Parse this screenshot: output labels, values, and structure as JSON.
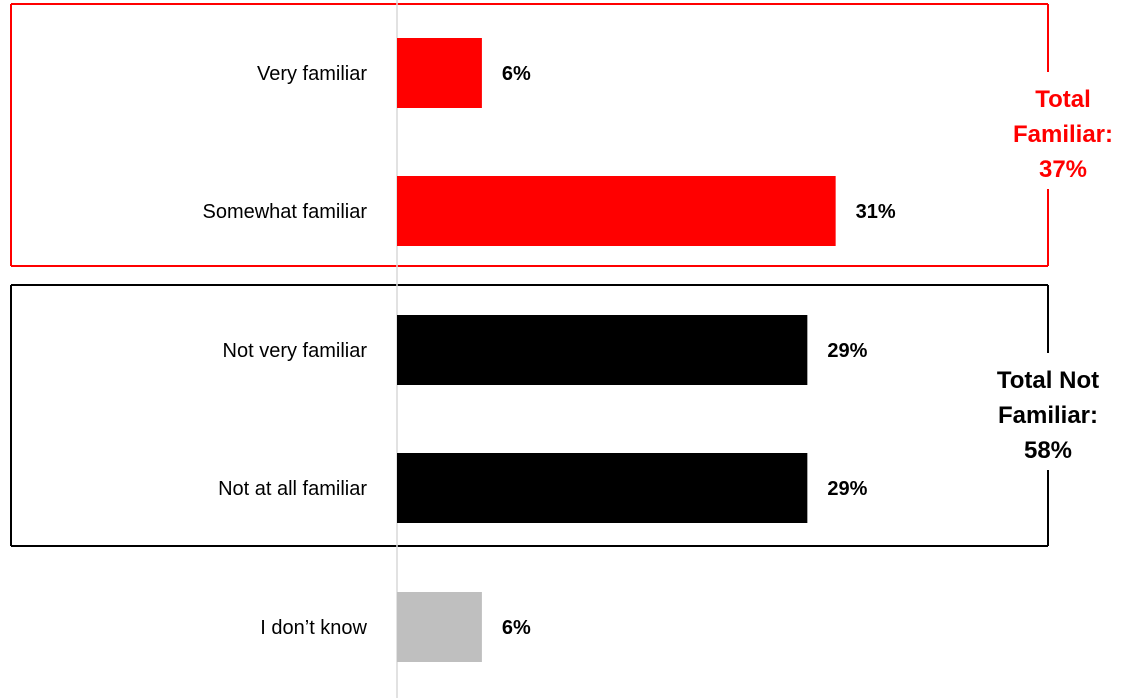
{
  "chart_data": {
    "type": "bar",
    "orientation": "horizontal",
    "categories": [
      "Very familiar",
      "Somewhat familiar",
      "Not very familiar",
      "Not at all familiar",
      "I don’t know"
    ],
    "values": [
      6,
      31,
      29,
      29,
      6
    ],
    "value_labels": [
      "6%",
      "31%",
      "29%",
      "29%",
      "6%"
    ],
    "bar_colors": [
      "#ff0000",
      "#ff0000",
      "#000000",
      "#000000",
      "#bfbfbf"
    ],
    "xlim": [
      0,
      72
    ],
    "grid": false,
    "groups": [
      {
        "label_lines": [
          "Total",
          "Familiar:",
          "37%"
        ],
        "value": 37,
        "categories": [
          "Very familiar",
          "Somewhat familiar"
        ],
        "color": "#ff0000"
      },
      {
        "label_lines": [
          "Total Not",
          "Familiar:",
          "58%"
        ],
        "value": 58,
        "categories": [
          "Not very familiar",
          "Not at all familiar"
        ],
        "color": "#000000"
      }
    ]
  }
}
